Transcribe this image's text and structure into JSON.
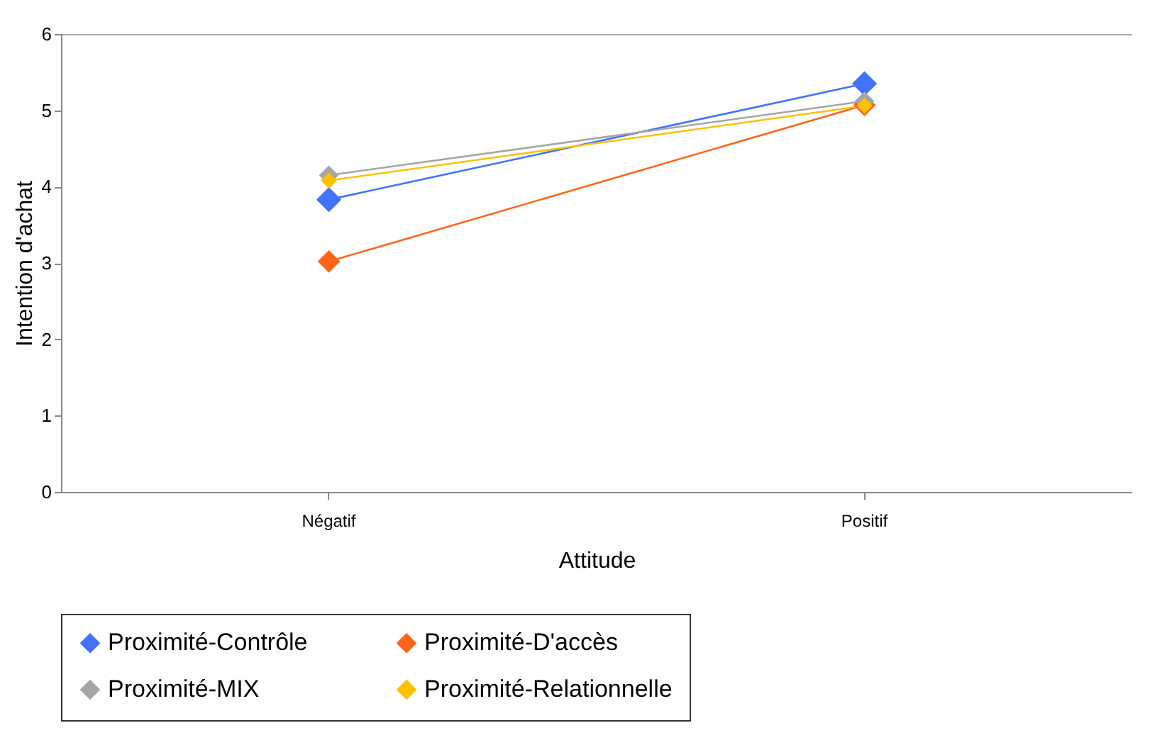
{
  "chart_data": {
    "type": "line",
    "xlabel": "Attitude",
    "ylabel": "Intention d'achat",
    "categories": [
      "Négatif",
      "Positif"
    ],
    "series": [
      {
        "name": "Proximité-Contrôle",
        "color": "#4173ff",
        "values": [
          3.83,
          5.35
        ]
      },
      {
        "name": "Proximité-D'accès",
        "color": "#ff6418",
        "values": [
          3.02,
          5.07
        ]
      },
      {
        "name": "Proximité-MIX",
        "color": "#a5a5a5",
        "values": [
          4.15,
          5.12
        ]
      },
      {
        "name": "Proximité-Relationnelle",
        "color": "#ffc000",
        "values": [
          4.08,
          5.06
        ]
      }
    ],
    "ylim": [
      0,
      6
    ],
    "yticks": [
      0,
      1,
      2,
      3,
      4,
      5,
      6
    ],
    "grid": false,
    "legend": "bottom",
    "marker": "diamond",
    "line_style": "solid"
  }
}
